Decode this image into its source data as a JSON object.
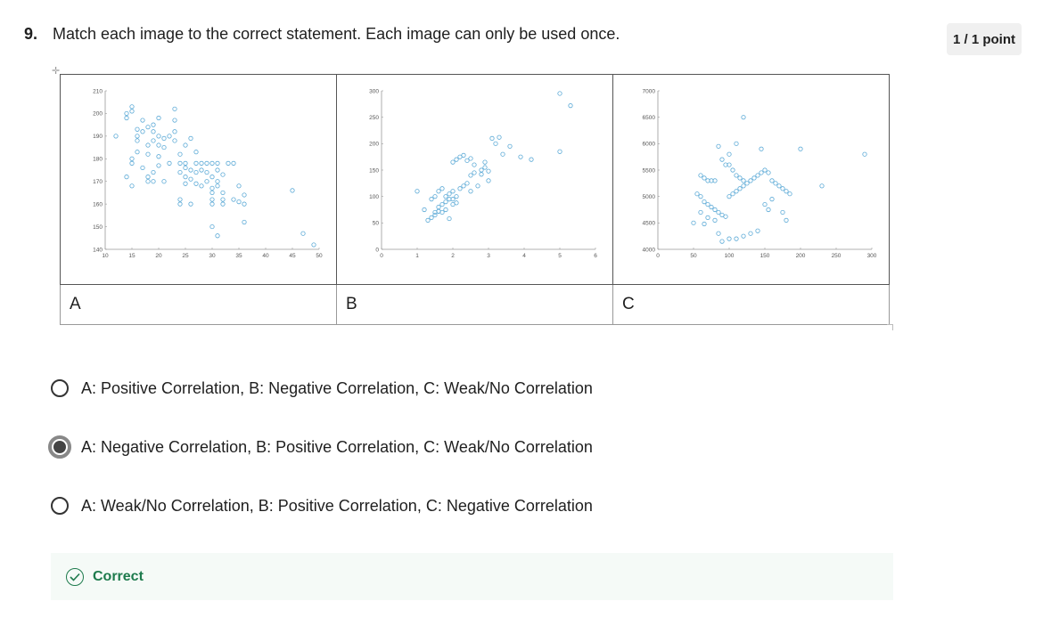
{
  "question": {
    "number": "9.",
    "text": "Match each image to the correct statement. Each image can only be used once.",
    "points": "1 / 1 point"
  },
  "images": [
    {
      "label": "A",
      "chart_data": {
        "type": "scatter",
        "xlim": [
          10,
          50
        ],
        "ylim": [
          140,
          210
        ],
        "xticks": [
          10,
          15,
          20,
          25,
          30,
          35,
          40,
          45,
          50
        ],
        "yticks": [
          140,
          150,
          160,
          170,
          180,
          190,
          200,
          210
        ],
        "color": "#5aa9d6",
        "points": [
          [
            12,
            190
          ],
          [
            14,
            200
          ],
          [
            14,
            198
          ],
          [
            15,
            201
          ],
          [
            15,
            203
          ],
          [
            16,
            193
          ],
          [
            16,
            190
          ],
          [
            16,
            188
          ],
          [
            17,
            192
          ],
          [
            15,
            180
          ],
          [
            15,
            178
          ],
          [
            16,
            183
          ],
          [
            17,
            176
          ],
          [
            18,
            172
          ],
          [
            18,
            182
          ],
          [
            18,
            186
          ],
          [
            19,
            188
          ],
          [
            19,
            192
          ],
          [
            19,
            195
          ],
          [
            20,
            186
          ],
          [
            20,
            190
          ],
          [
            18,
            170
          ],
          [
            19,
            170
          ],
          [
            19,
            174
          ],
          [
            20,
            177
          ],
          [
            20,
            181
          ],
          [
            21,
            170
          ],
          [
            21,
            185
          ],
          [
            21,
            189
          ],
          [
            22,
            190
          ],
          [
            22,
            178
          ],
          [
            23,
            188
          ],
          [
            23,
            192
          ],
          [
            23,
            197
          ],
          [
            23,
            202
          ],
          [
            24,
            182
          ],
          [
            24,
            174
          ],
          [
            24,
            178
          ],
          [
            25,
            172
          ],
          [
            25,
            176
          ],
          [
            25,
            178
          ],
          [
            25,
            169
          ],
          [
            25,
            186
          ],
          [
            26,
            189
          ],
          [
            26,
            175
          ],
          [
            26,
            171
          ],
          [
            27,
            178
          ],
          [
            27,
            174
          ],
          [
            27,
            169
          ],
          [
            27,
            183
          ],
          [
            28,
            178
          ],
          [
            28,
            175
          ],
          [
            28,
            168
          ],
          [
            29,
            178
          ],
          [
            29,
            174
          ],
          [
            29,
            170
          ],
          [
            30,
            178
          ],
          [
            30,
            172
          ],
          [
            30,
            167
          ],
          [
            30,
            165
          ],
          [
            30,
            162
          ],
          [
            30,
            160
          ],
          [
            31,
            170
          ],
          [
            31,
            168
          ],
          [
            31,
            175
          ],
          [
            31,
            178
          ],
          [
            32,
            165
          ],
          [
            32,
            160
          ],
          [
            32,
            162
          ],
          [
            32,
            173
          ],
          [
            24,
            160
          ],
          [
            24,
            162
          ],
          [
            26,
            160
          ],
          [
            30,
            150
          ],
          [
            31,
            146
          ],
          [
            34,
            162
          ],
          [
            35,
            161
          ],
          [
            34,
            178
          ],
          [
            35,
            168
          ],
          [
            36,
            160
          ],
          [
            36,
            152
          ],
          [
            36,
            164
          ],
          [
            45,
            166
          ],
          [
            49,
            142
          ],
          [
            47,
            147
          ],
          [
            15,
            168
          ],
          [
            14,
            172
          ],
          [
            33,
            178
          ],
          [
            17,
            197
          ],
          [
            18,
            194
          ],
          [
            20,
            198
          ]
        ]
      }
    },
    {
      "label": "B",
      "chart_data": {
        "type": "scatter",
        "xlim": [
          0,
          6
        ],
        "ylim": [
          0,
          300
        ],
        "xticks": [
          0,
          1,
          2,
          3,
          4,
          5,
          6
        ],
        "yticks": [
          0,
          50,
          100,
          150,
          200,
          250,
          300
        ],
        "color": "#5aa9d6",
        "points": [
          [
            1.4,
            60
          ],
          [
            1.5,
            65
          ],
          [
            1.5,
            70
          ],
          [
            1.6,
            72
          ],
          [
            1.6,
            80
          ],
          [
            1.7,
            70
          ],
          [
            1.7,
            85
          ],
          [
            1.8,
            75
          ],
          [
            1.8,
            90
          ],
          [
            1.8,
            100
          ],
          [
            1.9,
            95
          ],
          [
            1.9,
            105
          ],
          [
            2.0,
            85
          ],
          [
            2.0,
            95
          ],
          [
            2.0,
            110
          ],
          [
            2.1,
            100
          ],
          [
            2.1,
            88
          ],
          [
            1.6,
            110
          ],
          [
            1.7,
            115
          ],
          [
            1.5,
            100
          ],
          [
            1.4,
            95
          ],
          [
            1.3,
            55
          ],
          [
            1.2,
            75
          ],
          [
            1.0,
            110
          ],
          [
            2.2,
            115
          ],
          [
            2.3,
            120
          ],
          [
            2.4,
            125
          ],
          [
            2.5,
            110
          ],
          [
            2.5,
            140
          ],
          [
            2.6,
            145
          ],
          [
            2.7,
            120
          ],
          [
            2.8,
            150
          ],
          [
            2.9,
            155
          ],
          [
            3.0,
            130
          ],
          [
            3.0,
            148
          ],
          [
            2.0,
            165
          ],
          [
            2.1,
            170
          ],
          [
            2.2,
            175
          ],
          [
            2.3,
            178
          ],
          [
            2.4,
            168
          ],
          [
            2.5,
            172
          ],
          [
            2.6,
            160
          ],
          [
            2.8,
            142
          ],
          [
            3.2,
            200
          ],
          [
            3.4,
            180
          ],
          [
            3.6,
            195
          ],
          [
            3.9,
            175
          ],
          [
            4.2,
            170
          ],
          [
            5.0,
            185
          ],
          [
            5.0,
            295
          ],
          [
            5.3,
            272
          ],
          [
            3.1,
            210
          ],
          [
            3.3,
            212
          ],
          [
            2.9,
            165
          ],
          [
            1.6,
            72
          ],
          [
            1.9,
            58
          ]
        ]
      }
    },
    {
      "label": "C",
      "chart_data": {
        "type": "scatter",
        "xlim": [
          0,
          300
        ],
        "ylim": [
          4000,
          7000
        ],
        "xticks": [
          0,
          50,
          100,
          150,
          200,
          250,
          300
        ],
        "yticks": [
          4000,
          4500,
          5000,
          5500,
          6000,
          6500,
          7000
        ],
        "color": "#5aa9d6",
        "points": [
          [
            60,
            5400
          ],
          [
            65,
            5350
          ],
          [
            70,
            5300
          ],
          [
            75,
            5300
          ],
          [
            80,
            5300
          ],
          [
            55,
            5050
          ],
          [
            60,
            5000
          ],
          [
            65,
            4900
          ],
          [
            70,
            4850
          ],
          [
            75,
            4800
          ],
          [
            80,
            4750
          ],
          [
            85,
            4700
          ],
          [
            90,
            4650
          ],
          [
            95,
            4620
          ],
          [
            60,
            4700
          ],
          [
            70,
            4600
          ],
          [
            80,
            4550
          ],
          [
            50,
            4500
          ],
          [
            65,
            4480
          ],
          [
            85,
            4300
          ],
          [
            90,
            4150
          ],
          [
            100,
            4200
          ],
          [
            110,
            4200
          ],
          [
            120,
            4250
          ],
          [
            130,
            4300
          ],
          [
            140,
            4350
          ],
          [
            100,
            5000
          ],
          [
            105,
            5050
          ],
          [
            110,
            5100
          ],
          [
            115,
            5150
          ],
          [
            120,
            5200
          ],
          [
            125,
            5250
          ],
          [
            130,
            5300
          ],
          [
            135,
            5350
          ],
          [
            140,
            5400
          ],
          [
            145,
            5450
          ],
          [
            150,
            5500
          ],
          [
            155,
            5450
          ],
          [
            160,
            5300
          ],
          [
            165,
            5250
          ],
          [
            170,
            5200
          ],
          [
            175,
            5150
          ],
          [
            180,
            5100
          ],
          [
            185,
            5050
          ],
          [
            90,
            5700
          ],
          [
            95,
            5600
          ],
          [
            100,
            5600
          ],
          [
            105,
            5500
          ],
          [
            110,
            5400
          ],
          [
            115,
            5350
          ],
          [
            120,
            5300
          ],
          [
            85,
            5950
          ],
          [
            100,
            5800
          ],
          [
            110,
            6000
          ],
          [
            120,
            6500
          ],
          [
            145,
            5900
          ],
          [
            200,
            5900
          ],
          [
            230,
            5200
          ],
          [
            290,
            5800
          ],
          [
            180,
            4550
          ],
          [
            175,
            4700
          ],
          [
            155,
            4750
          ],
          [
            150,
            4850
          ],
          [
            160,
            4950
          ]
        ]
      }
    }
  ],
  "options": [
    {
      "id": "opt1",
      "label": "A: Positive Correlation, B: Negative Correlation, C: Weak/No Correlation",
      "selected": false
    },
    {
      "id": "opt2",
      "label": "A: Negative Correlation, B: Positive Correlation, C: Weak/No Correlation",
      "selected": true
    },
    {
      "id": "opt3",
      "label": "A: Weak/No Correlation, B: Positive Correlation, C: Negative Correlation",
      "selected": false
    }
  ],
  "feedback": {
    "text": "Correct",
    "icon": "check-circle-icon",
    "color": "#1e7b4d"
  }
}
